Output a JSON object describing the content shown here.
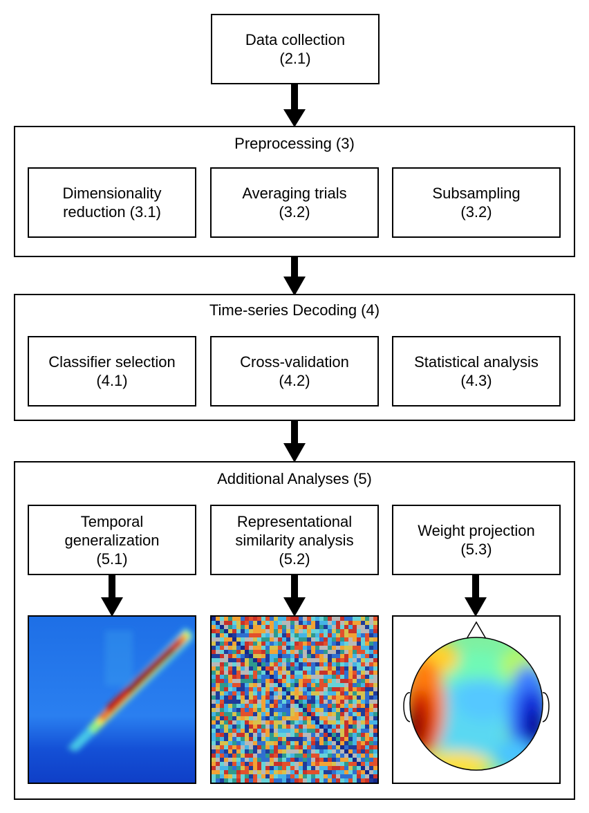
{
  "top": {
    "title": "Data collection",
    "ref": "(2.1)"
  },
  "preprocessing": {
    "title": "Preprocessing (3)",
    "steps": [
      {
        "line1": "Dimensionality",
        "line2": "reduction (3.1)"
      },
      {
        "line1": "Averaging trials",
        "line2": "(3.2)"
      },
      {
        "line1": "Subsampling",
        "line2": "(3.2)"
      }
    ]
  },
  "decoding": {
    "title": "Time-series Decoding (4)",
    "steps": [
      {
        "line1": "Classifier selection",
        "line2": "(4.1)"
      },
      {
        "line1": "Cross-validation",
        "line2": "(4.2)"
      },
      {
        "line1": "Statistical analysis",
        "line2": "(4.3)"
      }
    ]
  },
  "additional": {
    "title": "Additional Analyses (5)",
    "steps": [
      {
        "line1": "Temporal",
        "line2": "generalization",
        "line3": "(5.1)"
      },
      {
        "line1": "Representational",
        "line2": "similarity analysis",
        "line3": "(5.2)"
      },
      {
        "line1": "Weight projection",
        "line2": "(5.3)"
      }
    ]
  },
  "colors": {
    "stroke": "#000000",
    "jet_low": "#00008f",
    "jet_high": "#800000"
  },
  "figures": [
    "temporal-generalization-matrix",
    "rsa-dissimilarity-matrix",
    "scalp-topography-map"
  ]
}
